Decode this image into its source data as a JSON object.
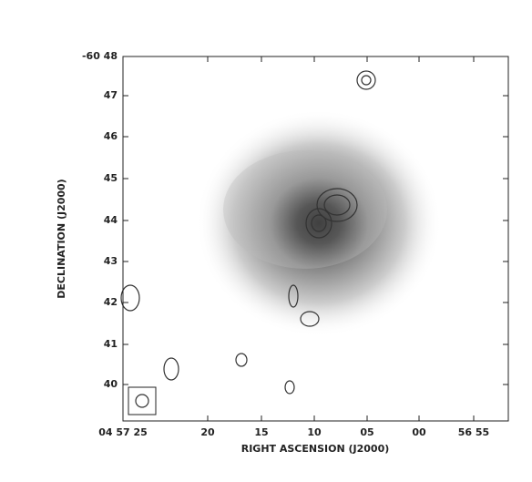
{
  "figure": {
    "ylabel": "DECLINATION (J2000)",
    "xlabel": "RIGHT ASCENSION (J2000)",
    "yticks": [
      "-60 48",
      "47",
      "46",
      "45",
      "44",
      "43",
      "42",
      "41",
      "40"
    ],
    "xticks": [
      "04 57 25",
      "20",
      "15",
      "10",
      "05",
      "00",
      "56 55"
    ]
  }
}
